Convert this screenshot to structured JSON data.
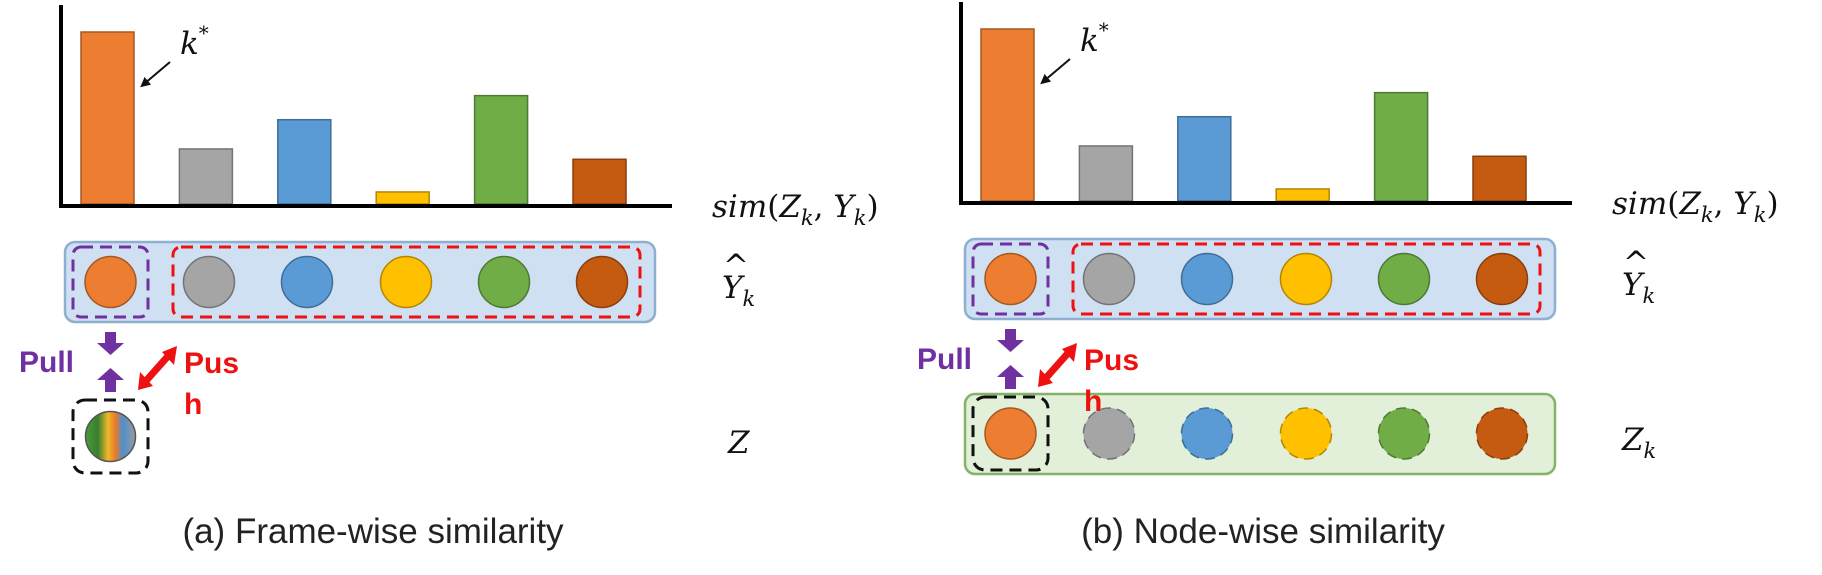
{
  "colors": {
    "orange": "#ED7D31",
    "gray": "#A5A5A5",
    "blue": "#5B9BD5",
    "yellow": "#FFC000",
    "green": "#70AD47",
    "rust": "#C55A11",
    "pull": "#7030A0",
    "push": "#EE1111",
    "y_box_fill": "#CFE0F3",
    "y_box_stroke": "#8FAFD0",
    "z_box_fill": "#E2EFD9",
    "z_box_stroke": "#82B366"
  },
  "panels": [
    {
      "id": "a",
      "caption": "(a) Frame-wise similarity",
      "k_label": "k",
      "k_sup": "*",
      "sim_label": {
        "prefix": "sim",
        "z": "Z",
        "z_sub": "k",
        "y": "Y",
        "y_sub": "k"
      },
      "y_label": {
        "y": "Y",
        "sub": "k"
      },
      "z_label": {
        "z": "Z",
        "sub": ""
      },
      "pull_label": "Pull",
      "push_label_line1": "Pus",
      "push_label_line2": "h",
      "z_mode": "frame"
    },
    {
      "id": "b",
      "caption": "(b) Node-wise similarity",
      "k_label": "k",
      "k_sup": "*",
      "sim_label": {
        "prefix": "sim",
        "z": "Z",
        "z_sub": "k",
        "y": "Y",
        "y_sub": "k"
      },
      "y_label": {
        "y": "Y",
        "sub": "k"
      },
      "z_label": {
        "z": "Z",
        "sub": "k"
      },
      "pull_label": "Pull",
      "push_label_line1": "Pus",
      "push_label_line2": "h",
      "z_mode": "node"
    }
  ],
  "chart_data": {
    "type": "bar",
    "categories": [
      "",
      "",
      "",
      "",
      "",
      ""
    ],
    "series": [
      {
        "name": "",
        "values": [
          1.0,
          0.32,
          0.49,
          0.07,
          0.63,
          0.26
        ],
        "colors": [
          "#ED7D31",
          "#A5A5A5",
          "#5B9BD5",
          "#FFC000",
          "#70AD47",
          "#C55A11"
        ]
      }
    ],
    "ylim": [
      0,
      1.0
    ],
    "highlight_index": 0
  }
}
